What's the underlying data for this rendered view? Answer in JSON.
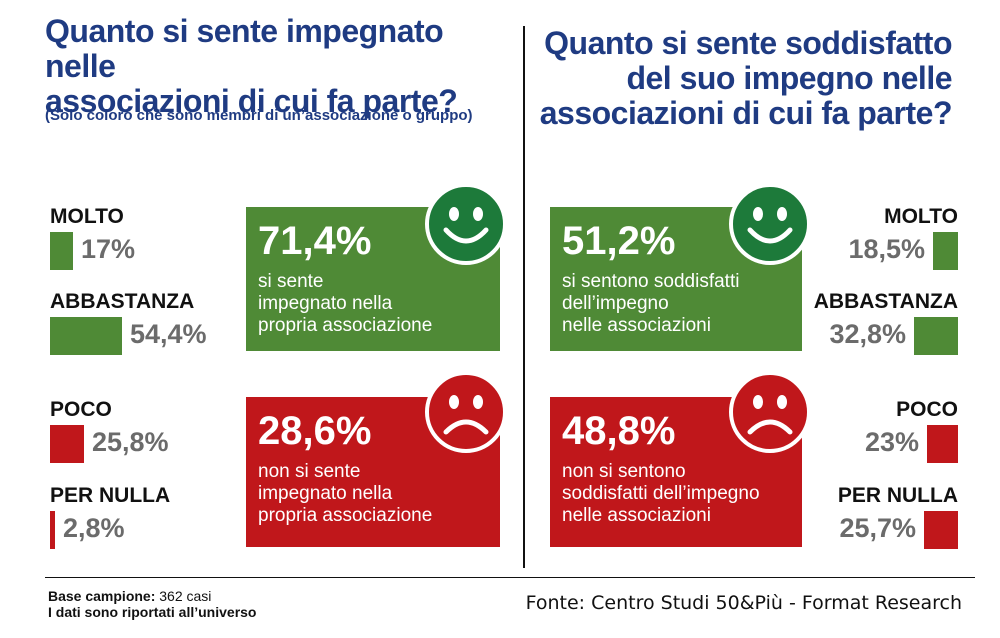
{
  "left": {
    "title_line1": "Quanto si sente impegnato nelle",
    "title_line2": "associazioni di cui fa parte?",
    "subtitle": "(Solo coloro che sono membri di un’associazione o gruppo)",
    "positive_box": {
      "percent": "71,4%",
      "line1": "si sente",
      "line2": "impegnato nella",
      "line3": "propria associazione"
    },
    "negative_box": {
      "percent": "28,6%",
      "line1": "non si sente",
      "line2": "impegnato nella",
      "line3": "propria associazione"
    }
  },
  "right": {
    "title_line1": "Quanto si sente soddisfatto",
    "title_line2": "del suo impegno nelle",
    "title_line3": "associazioni di cui fa parte?",
    "positive_box": {
      "percent": "51,2%",
      "line1": "si sentono soddisfatti",
      "line2": "dell’impegno",
      "line3": "nelle associazioni"
    },
    "negative_box": {
      "percent": "48,8%",
      "line1": "non si sentono",
      "line2": "soddisfatti dell’impegno",
      "line3": "nelle associazioni"
    }
  },
  "chart_data": [
    {
      "type": "bar",
      "categories": [
        "MOLTO",
        "ABBASTANZA",
        "POCO",
        "PER NULLA"
      ],
      "values": [
        17,
        54.4,
        25.8,
        2.8
      ],
      "value_labels": [
        "17%",
        "54,4%",
        "25,8%",
        "2,8%"
      ],
      "colors": [
        "#4f8a36",
        "#4f8a36",
        "#c0171b",
        "#c0171b"
      ]
    },
    {
      "type": "bar",
      "categories": [
        "MOLTO",
        "ABBASTANZA",
        "POCO",
        "PER NULLA"
      ],
      "values": [
        18.5,
        32.8,
        23,
        25.7
      ],
      "value_labels": [
        "18,5%",
        "32,8%",
        "23%",
        "25,7%"
      ],
      "colors": [
        "#4f8a36",
        "#4f8a36",
        "#c0171b",
        "#c0171b"
      ]
    }
  ],
  "footer": {
    "base_label": "Base campione:",
    "base_value": "362 casi",
    "note": "I dati sono riportati all’universo",
    "source": "Fonte: Centro Studi 50&Più - Format Research"
  },
  "colors": {
    "green": "#4f8a36",
    "red": "#c0171b",
    "title_blue": "#1f3b82",
    "smile_green": "#1d7a3a",
    "frown_red": "#c0171b"
  },
  "icons": {
    "positive": "smiley-face-icon",
    "negative": "sad-face-icon"
  }
}
